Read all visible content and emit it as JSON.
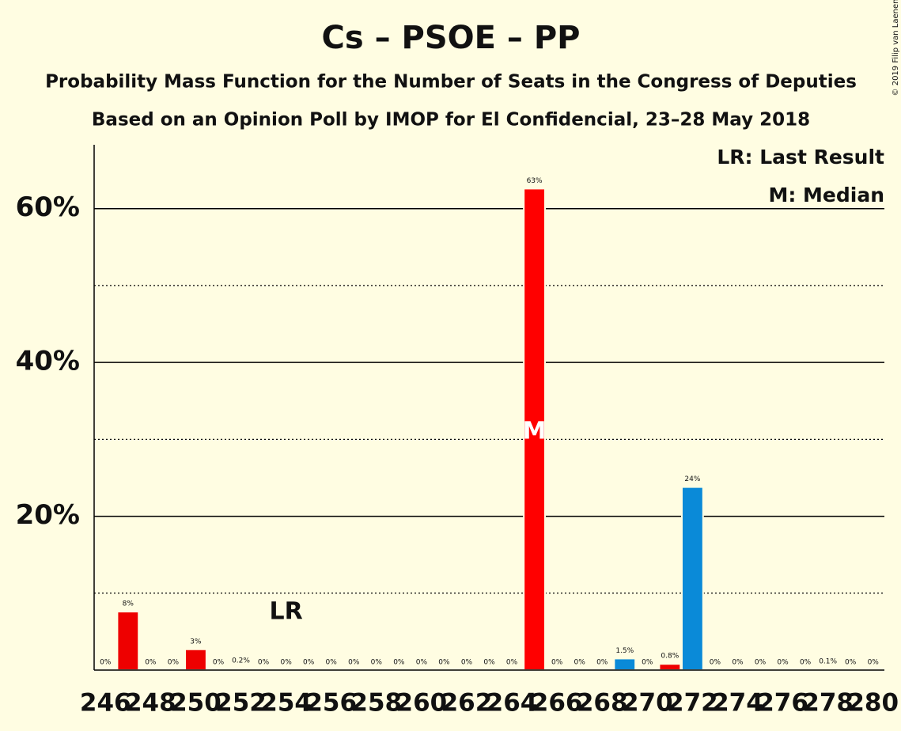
{
  "chart_data": {
    "type": "bar",
    "title": "Cs – PSOE – PP",
    "subtitle": "Probability Mass Function for the Number of Seats in the Congress of Deputies",
    "subtitle2": "Based on an Opinion Poll by IMOP for El Confidencial, 23–28 May 2018",
    "copyright": "© 2019 Filip van Laenen",
    "x": [
      246,
      247,
      248,
      249,
      250,
      251,
      252,
      253,
      254,
      255,
      256,
      257,
      258,
      259,
      260,
      261,
      262,
      263,
      264,
      265,
      266,
      267,
      268,
      269,
      270,
      271,
      272,
      273,
      274,
      275,
      276,
      277,
      278,
      279,
      280
    ],
    "values": [
      0,
      7.6,
      0,
      0,
      2.7,
      0,
      0.2,
      0,
      0,
      0,
      0,
      0,
      0,
      0,
      0,
      0,
      0,
      0,
      0,
      62.6,
      0,
      0,
      0,
      1.5,
      0,
      0.8,
      23.8,
      0,
      0,
      0,
      0,
      0,
      0.1,
      0,
      0
    ],
    "value_labels": [
      "0%",
      "8%",
      "0%",
      "0%",
      "3%",
      "0%",
      "0.2%",
      "0%",
      "0%",
      "0%",
      "0%",
      "0%",
      "0%",
      "0%",
      "0%",
      "0%",
      "0%",
      "0%",
      "0%",
      "63%",
      "0%",
      "0%",
      "0%",
      "1.5%",
      "0%",
      "0.8%",
      "24%",
      "0%",
      "0%",
      "0%",
      "0%",
      "0%",
      "0.1%",
      "0%",
      "0%"
    ],
    "colors": [
      "#e00",
      "#e00",
      "#e00",
      "#e00",
      "#e00",
      "#e00",
      "#e00",
      "#e00",
      "#e00",
      "#e00",
      "#e00",
      "#e00",
      "#e00",
      "#e00",
      "#e00",
      "#e00",
      "#e00",
      "#e00",
      "#e00",
      "#f00",
      "#e00",
      "#e00",
      "#e00",
      "#0a8ad8",
      "#e00",
      "#e00",
      "#0a8ad8",
      "#e00",
      "#e00",
      "#e00",
      "#e00",
      "#e00",
      "#e00",
      "#e00",
      "#e00"
    ],
    "xlim": [
      245.5,
      280.5
    ],
    "xticks": [
      246,
      248,
      250,
      252,
      254,
      256,
      258,
      260,
      262,
      264,
      266,
      268,
      270,
      272,
      274,
      276,
      278,
      280
    ],
    "ylim": [
      0,
      68.3
    ],
    "yticks": [
      {
        "value": 20,
        "label": "20%"
      },
      {
        "value": 40,
        "label": "40%"
      },
      {
        "value": 60,
        "label": "60%"
      }
    ],
    "minor_yticks": [
      10,
      30,
      50
    ],
    "grid": true,
    "last_result": {
      "x": 254,
      "label": "LR"
    },
    "median": {
      "x": 265,
      "label": "M"
    },
    "legend": [
      "LR: Last Result",
      "M: Median"
    ]
  }
}
